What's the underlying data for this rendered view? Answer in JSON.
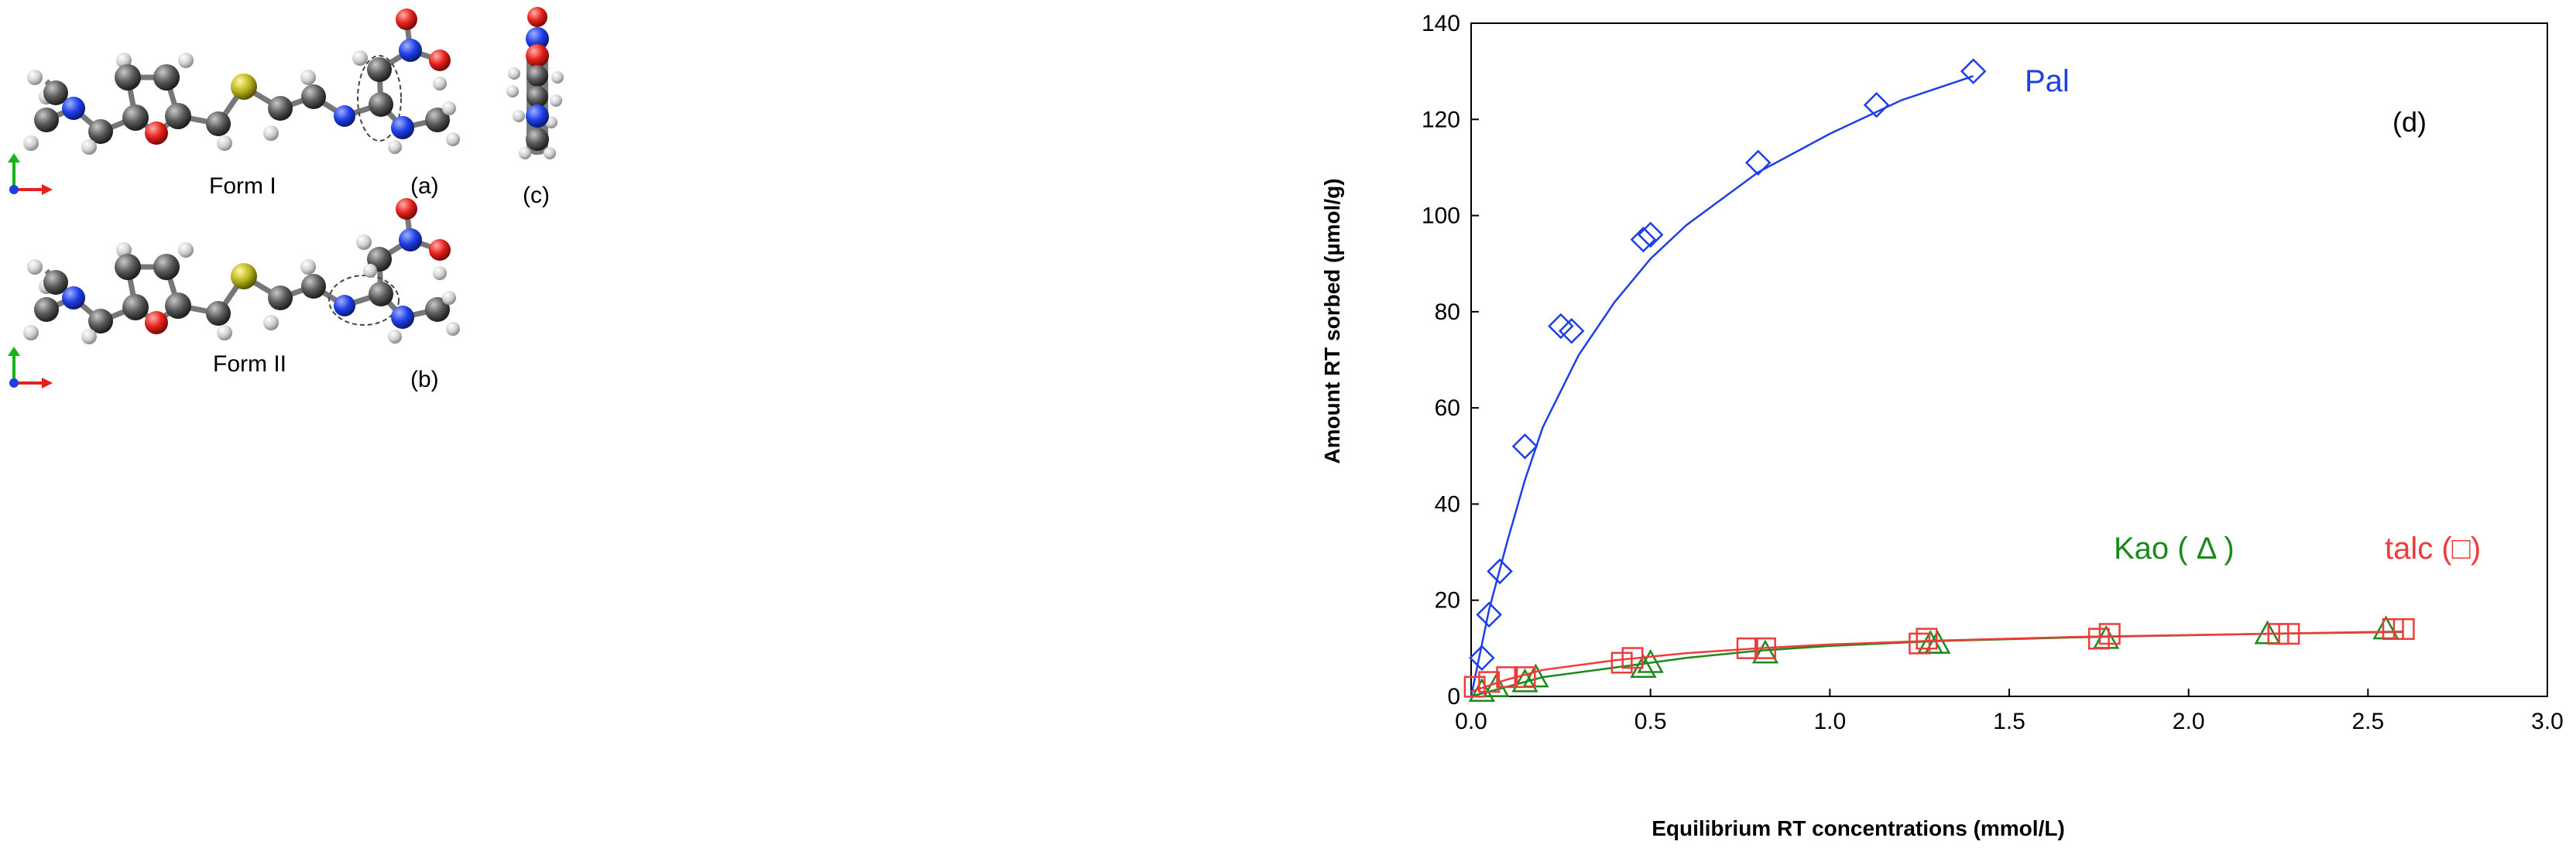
{
  "figure": {
    "panel_a_label": "(a)",
    "panel_b_label": "(b)",
    "panel_c_label": "(c)",
    "panel_d_label": "(d)",
    "form1_label": "Form I",
    "form2_label": "Form II"
  },
  "atom_colors": {
    "carbon": "#5a5a5a",
    "hydrogen": "#d4d4d4",
    "nitrogen": "#1f3fe6",
    "oxygen": "#e6201a",
    "sulfur": "#b9b51a"
  },
  "chart_data": {
    "type": "scatter",
    "xlabel": "Equilibrium RT concentrations (mmol/L)",
    "ylabel": "Amount RT sorbed (µmol/g)",
    "xlim": [
      0,
      3.0
    ],
    "ylim": [
      0,
      140
    ],
    "x_ticks": [
      "0.0",
      "0.5",
      "1.0",
      "1.5",
      "2.0",
      "2.5",
      "3.0"
    ],
    "y_ticks": [
      "0",
      "20",
      "40",
      "60",
      "80",
      "100",
      "120",
      "140"
    ],
    "grid": false,
    "legend": "inline labels",
    "series": [
      {
        "name": "Pal",
        "marker": "diamond",
        "color": "#1f3fe6",
        "points": [
          [
            0.03,
            8
          ],
          [
            0.05,
            17
          ],
          [
            0.08,
            26
          ],
          [
            0.15,
            52
          ],
          [
            0.25,
            77
          ],
          [
            0.28,
            76
          ],
          [
            0.48,
            95
          ],
          [
            0.5,
            96
          ],
          [
            0.8,
            111
          ],
          [
            1.13,
            123
          ],
          [
            1.4,
            130
          ]
        ],
        "fit": [
          [
            0.0,
            0
          ],
          [
            0.05,
            18
          ],
          [
            0.1,
            32
          ],
          [
            0.15,
            45
          ],
          [
            0.2,
            56
          ],
          [
            0.3,
            71
          ],
          [
            0.4,
            82
          ],
          [
            0.5,
            91
          ],
          [
            0.6,
            98
          ],
          [
            0.8,
            109
          ],
          [
            1.0,
            117
          ],
          [
            1.2,
            124
          ],
          [
            1.4,
            129
          ]
        ]
      },
      {
        "name": "Kao (Δ)",
        "marker": "triangle",
        "color": "#1a8a1a",
        "points": [
          [
            0.03,
            1
          ],
          [
            0.07,
            2
          ],
          [
            0.15,
            3
          ],
          [
            0.18,
            4
          ],
          [
            0.48,
            6
          ],
          [
            0.5,
            7
          ],
          [
            0.82,
            9
          ],
          [
            1.28,
            11
          ],
          [
            1.3,
            11
          ],
          [
            1.77,
            12
          ],
          [
            2.22,
            13
          ],
          [
            2.55,
            14
          ]
        ],
        "fit": [
          [
            0.0,
            0
          ],
          [
            0.1,
            2
          ],
          [
            0.2,
            4
          ],
          [
            0.4,
            6
          ],
          [
            0.6,
            8
          ],
          [
            0.8,
            9.5
          ],
          [
            1.0,
            10.5
          ],
          [
            1.3,
            11.5
          ],
          [
            1.7,
            12.3
          ],
          [
            2.2,
            13
          ],
          [
            2.6,
            13.4
          ]
        ]
      },
      {
        "name": "talc (□)",
        "marker": "square",
        "color": "#ef3b3b",
        "points": [
          [
            0.01,
            2
          ],
          [
            0.05,
            3
          ],
          [
            0.1,
            4
          ],
          [
            0.15,
            4
          ],
          [
            0.42,
            7
          ],
          [
            0.45,
            8
          ],
          [
            0.77,
            10
          ],
          [
            0.82,
            10
          ],
          [
            1.25,
            11
          ],
          [
            1.27,
            12
          ],
          [
            1.75,
            12
          ],
          [
            1.78,
            13
          ],
          [
            2.25,
            13
          ],
          [
            2.28,
            13
          ],
          [
            2.57,
            14
          ],
          [
            2.6,
            14
          ]
        ],
        "fit": [
          [
            0.0,
            1
          ],
          [
            0.1,
            3.5
          ],
          [
            0.2,
            5.5
          ],
          [
            0.4,
            7.5
          ],
          [
            0.6,
            9
          ],
          [
            0.8,
            10
          ],
          [
            1.0,
            10.8
          ],
          [
            1.3,
            11.6
          ],
          [
            1.7,
            12.4
          ],
          [
            2.2,
            13
          ],
          [
            2.6,
            13.5
          ]
        ]
      }
    ],
    "annotations": [
      "Pal",
      "Kao ( Δ )",
      "talc (□)",
      "(d)"
    ]
  }
}
